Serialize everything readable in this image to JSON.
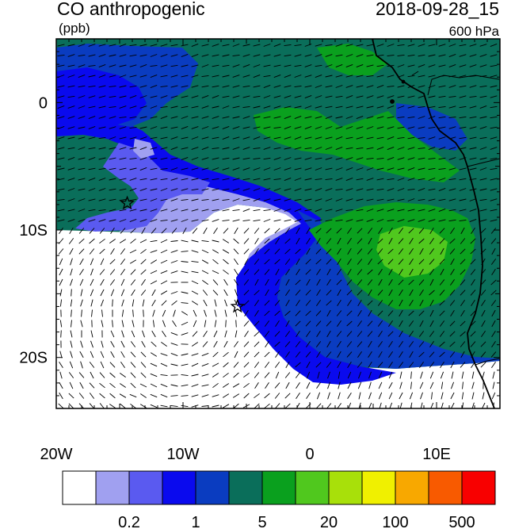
{
  "title": {
    "left": "CO anthropogenic",
    "units": "(ppb)",
    "right": "2018-09-28_15",
    "level": "600 hPa"
  },
  "map": {
    "lon_range": [
      -20,
      15
    ],
    "lat_range": [
      -24,
      5
    ],
    "x_ticks": [
      {
        "lon": -20,
        "label": "20W"
      },
      {
        "lon": -10,
        "label": "10W"
      },
      {
        "lon": 0,
        "label": "0"
      },
      {
        "lon": 10,
        "label": "10E"
      }
    ],
    "y_ticks": [
      {
        "lat": 0,
        "label": "0"
      },
      {
        "lat": -10,
        "label": "10S"
      },
      {
        "lat": -20,
        "label": "20S"
      }
    ],
    "markers": [
      {
        "name": "star-ascension",
        "lon": -14.4,
        "lat": -7.9
      },
      {
        "name": "star-st-helena",
        "lon": -5.7,
        "lat": -16.0
      }
    ]
  },
  "colorbar": {
    "colors": [
      "#ffffff",
      "#a0a0f0",
      "#5a5af0",
      "#0a0aee",
      "#0a3cc0",
      "#0a6e5a",
      "#0aa01e",
      "#50c81e",
      "#a8e00a",
      "#f0f000",
      "#f8a800",
      "#f85a00",
      "#f80000"
    ],
    "labels": [
      {
        "after_box": 2,
        "text": "0.2"
      },
      {
        "after_box": 4,
        "text": "1"
      },
      {
        "after_box": 6,
        "text": "5"
      },
      {
        "after_box": 8,
        "text": "20"
      },
      {
        "after_box": 10,
        "text": "100"
      },
      {
        "after_box": 12,
        "text": "500"
      }
    ]
  }
}
